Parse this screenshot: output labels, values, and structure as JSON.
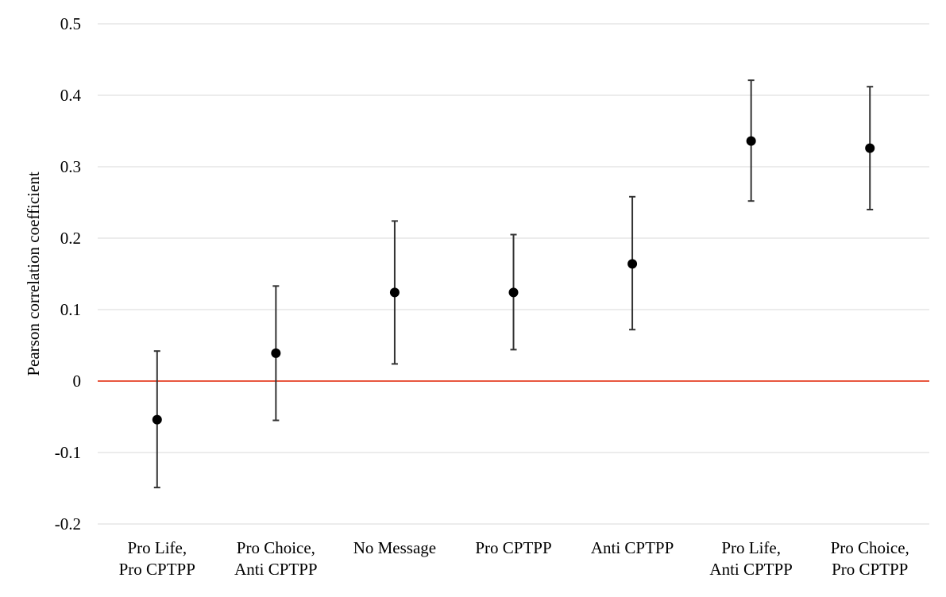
{
  "chart_data": {
    "type": "scatter",
    "title": "",
    "xlabel": "",
    "ylabel": "Pearson correlation coefficient",
    "ylim": [
      -0.2,
      0.5
    ],
    "yticks": [
      0.5,
      0.4,
      0.3,
      0.2,
      0.1,
      0,
      -0.1,
      -0.2
    ],
    "ytick_labels": [
      "0.5",
      "0.4",
      "0.3",
      "0.2",
      "0.1",
      "0",
      "-0.1",
      "-0.2"
    ],
    "grid": true,
    "legend": "none",
    "reference_line": {
      "y": 0,
      "color": "#e8573f"
    },
    "colors": {
      "point": "#000000",
      "error_bar": "#333333",
      "grid": "#d9d9d9"
    },
    "categories": [
      [
        "Pro Life,",
        "Pro CPTPP"
      ],
      [
        "Pro Choice,",
        "Anti CPTPP"
      ],
      [
        "No Message"
      ],
      [
        "Pro CPTPP"
      ],
      [
        "Anti CPTPP"
      ],
      [
        "Pro Life,",
        "Anti CPTPP"
      ],
      [
        "Pro Choice,",
        "Pro CPTPP"
      ]
    ],
    "values": [
      -0.054,
      0.039,
      0.124,
      0.124,
      0.164,
      0.336,
      0.326
    ],
    "lower": [
      -0.149,
      -0.055,
      0.024,
      0.044,
      0.072,
      0.252,
      0.24
    ],
    "upper": [
      0.042,
      0.133,
      0.224,
      0.205,
      0.258,
      0.421,
      0.412
    ]
  }
}
